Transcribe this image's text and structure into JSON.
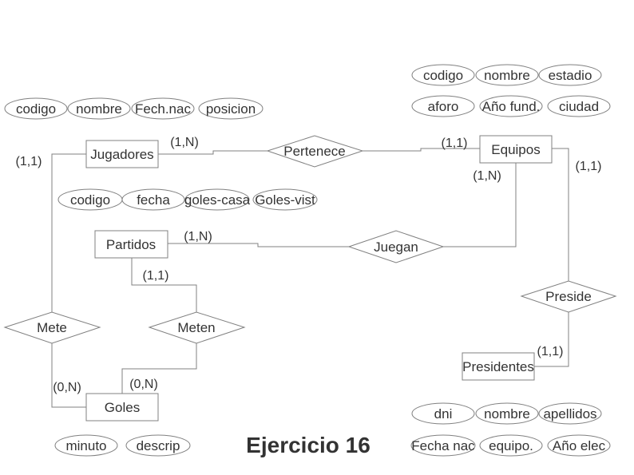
{
  "title": "Ejercicio 16",
  "entities": {
    "jugadores": "Jugadores",
    "equipos": "Equipos",
    "partidos": "Partidos",
    "goles": "Goles",
    "presidentes": "Presidentes"
  },
  "relationships": {
    "pertenece": "Pertenece",
    "juegan": "Juegan",
    "mete": "Mete",
    "meten": "Meten",
    "preside": "Preside"
  },
  "attributes": {
    "jugadores": [
      "codigo",
      "nombre",
      "Fech.nac",
      "posicion"
    ],
    "equipos_row1": [
      "codigo",
      "nombre",
      "estadio"
    ],
    "equipos_row2": [
      "aforo",
      "Año fund.",
      "ciudad"
    ],
    "partidos": [
      "codigo",
      "fecha",
      "goles-casa",
      "Goles-vist"
    ],
    "goles": [
      "minuto",
      "descrip"
    ],
    "presidentes_row1": [
      "dni",
      "nombre",
      "apellidos"
    ],
    "presidentes_row2": [
      "Fecha nac",
      "equipo.",
      "Año elec"
    ]
  },
  "cardinalities": {
    "jugadores_mete": "(1,1)",
    "jugadores_pertenece": "(1,N)",
    "equipos_pertenece": "(1,1)",
    "equipos_juegan": "(1,N)",
    "equipos_preside": "(1,1)",
    "partidos_juegan": "(1,N)",
    "partidos_meten": "(1,1)",
    "goles_mete": "(0,N)",
    "goles_meten": "(0,N)",
    "presidentes_preside": "(1,1)"
  }
}
